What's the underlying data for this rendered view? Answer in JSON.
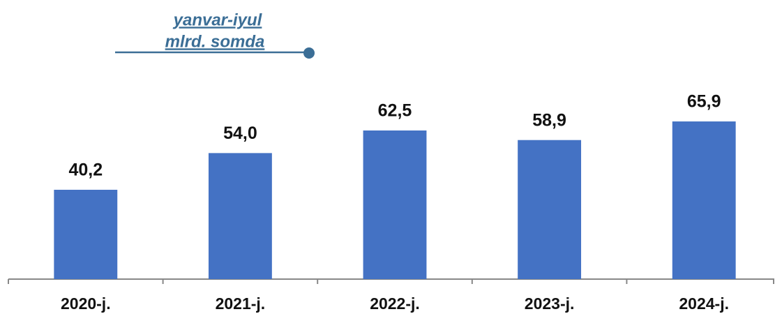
{
  "chart_data": {
    "type": "bar",
    "title": "yanvar-iyul",
    "subtitle": "mlrd. somda",
    "categories": [
      "2020-j.",
      "2021-j.",
      "2022-j.",
      "2023-j.",
      "2024-j."
    ],
    "values": [
      40.2,
      54.0,
      62.5,
      58.9,
      65.9
    ],
    "value_labels": [
      "40,2",
      "54,0",
      "62,5",
      "58,9",
      "65,9"
    ],
    "color": "#4472c4",
    "ylim": [
      6.6,
      110
    ]
  }
}
